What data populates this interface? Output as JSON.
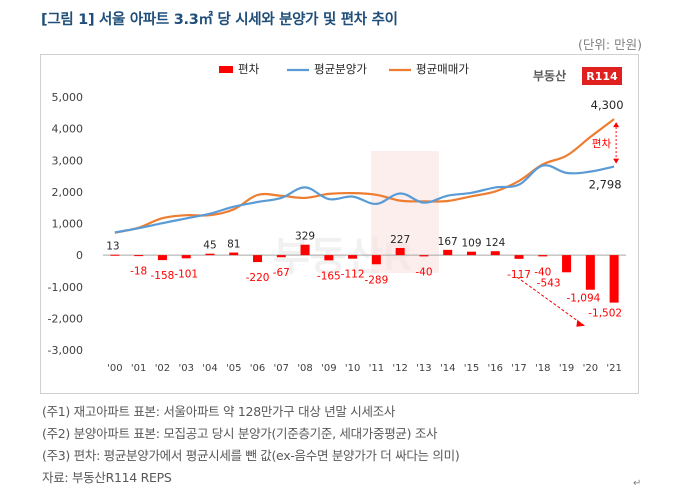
{
  "title": "[그림 1] 서울 아파트 3.3㎡ 당 시세와 분양가 및 편차 추이",
  "unit": "(단위: 만원)",
  "logo_text": "부동산",
  "logo_badge": "R114",
  "watermark_text": "부동산R",
  "notes": [
    "(주1) 재고아파트 표본: 서울아파트 약 128만가구 대상 년말 시세조사",
    "(주2) 분양아파트 표본: 모집공고 당시 분양가(기준층기준, 세대가중평균) 조사",
    "(주3) 편차: 평균분양가에서 평균시세를 뺀 값(ex-음수면 분양가가 더 싸다는 의미)",
    "자료: 부동산R114 REPS"
  ],
  "return_mark": "↵",
  "chart_data": {
    "type": "bar+line",
    "categories": [
      "'00",
      "'01",
      "'02",
      "'03",
      "'04",
      "'05",
      "'06",
      "'07",
      "'08",
      "'09",
      "'10",
      "'11",
      "'12",
      "'13",
      "'14",
      "'15",
      "'16",
      "'17",
      "'18",
      "'19",
      "'20",
      "'21"
    ],
    "ylim": [
      -3000,
      5000
    ],
    "yticks": [
      5000,
      4000,
      3000,
      2000,
      1000,
      0,
      -1000,
      -2000,
      -3000
    ],
    "ytick_labels": [
      "5,000",
      "4,000",
      "3,000",
      "2,000",
      "1,000",
      "0",
      "-1,000",
      "-2,000",
      "-3,000"
    ],
    "legend": [
      "편차",
      "평균분양가",
      "평균매매가"
    ],
    "legend_position": "top",
    "grid": false,
    "colors": {
      "bar": "#ff0000",
      "presale": "#5b9bd5",
      "market": "#ed7d31",
      "annotation": "#ff0000"
    },
    "series": [
      {
        "name": "편차",
        "type": "bar",
        "values": [
          13,
          -18,
          -158,
          -101,
          45,
          81,
          -220,
          -67,
          329,
          -165,
          -112,
          -289,
          227,
          -40,
          167,
          109,
          124,
          -117,
          -40,
          -543,
          -1094,
          -1502
        ],
        "labels": [
          "13",
          "-18",
          "-158",
          "-101",
          "45",
          "81",
          "-220",
          "-67",
          "329",
          "-165",
          "-112",
          "-289",
          "227",
          "-40",
          "167",
          "109",
          "124",
          "-117",
          "-40",
          "-543",
          "-1,094",
          "-1,502"
        ]
      },
      {
        "name": "평균분양가",
        "type": "line",
        "values": [
          720,
          850,
          1010,
          1160,
          1310,
          1530,
          1680,
          1810,
          2140,
          1770,
          1850,
          1620,
          1950,
          1660,
          1880,
          1970,
          2140,
          2230,
          2830,
          2600,
          2640,
          2798
        ]
      },
      {
        "name": "평균매매가",
        "type": "line",
        "values": [
          707,
          868,
          1168,
          1261,
          1265,
          1449,
          1900,
          1877,
          1811,
          1935,
          1962,
          1909,
          1723,
          1700,
          1713,
          1861,
          2016,
          2347,
          2870,
          3143,
          3734,
          4300
        ]
      }
    ],
    "annotations": [
      {
        "text": "4,300",
        "target": "평균매매가 '21"
      },
      {
        "text": "2,798",
        "target": "평균분양가 '21"
      },
      {
        "text": "편차",
        "target": "gap at '21"
      }
    ]
  }
}
